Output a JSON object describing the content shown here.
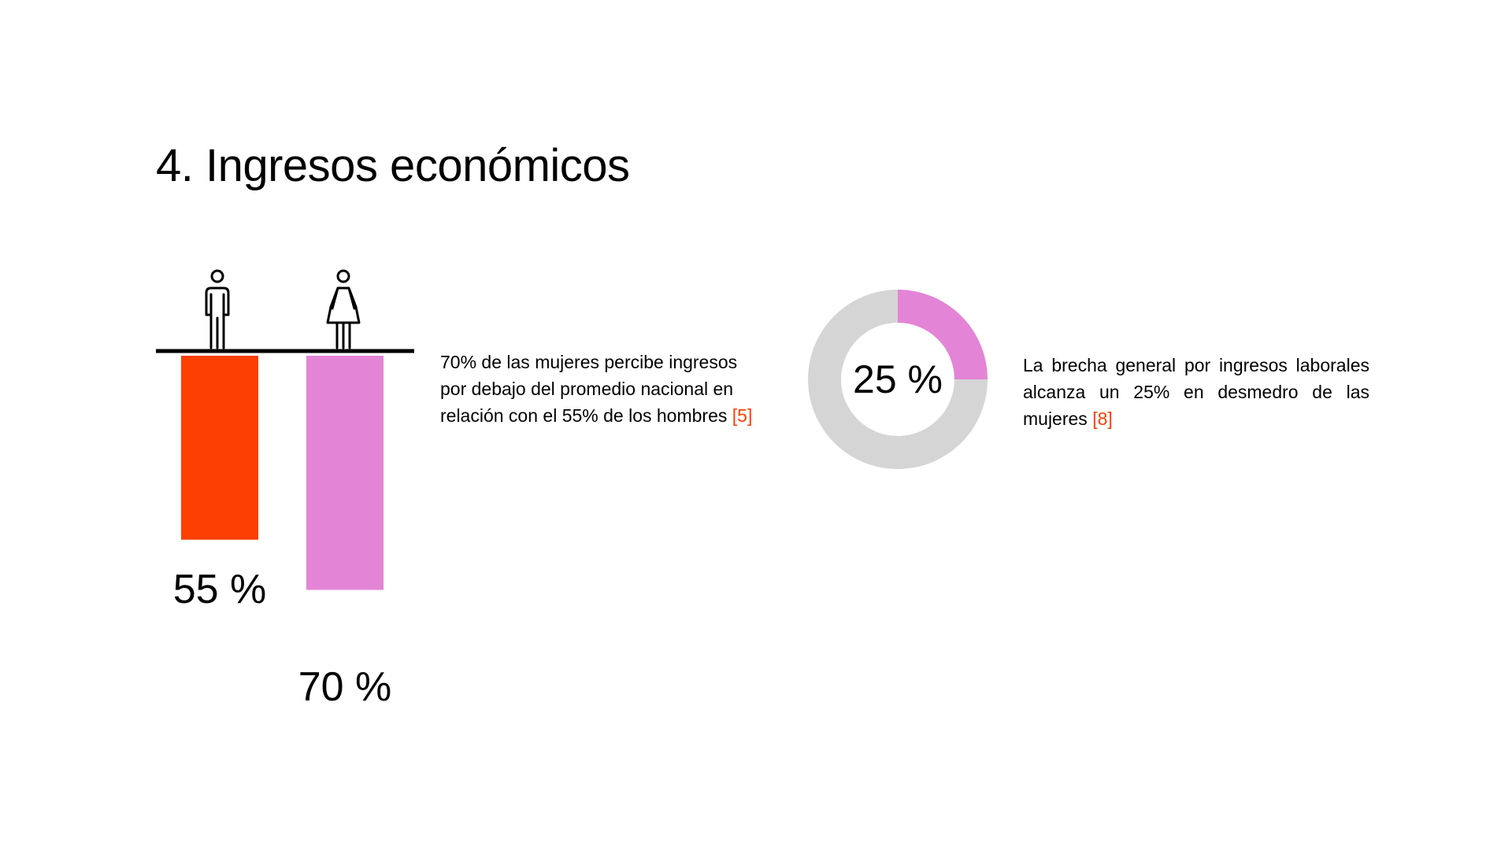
{
  "title": "4. Ingresos económicos",
  "colors": {
    "men": "#fe3f04",
    "women": "#e484d6",
    "track": "#d5d5d5",
    "reference": "#fe3f04"
  },
  "chart_data": [
    {
      "type": "bar",
      "categories": [
        "hombres",
        "mujeres"
      ],
      "category_icons": [
        "man-icon",
        "woman-icon"
      ],
      "values": [
        55,
        70
      ],
      "value_labels": [
        "55 %",
        "70 %"
      ],
      "unit": "%",
      "colors": [
        "#fe3f04",
        "#e484d6"
      ]
    },
    {
      "type": "pie",
      "donut": true,
      "values": [
        25,
        75
      ],
      "colors": [
        "#e484d6",
        "#d5d5d5"
      ],
      "center_label": "25 %"
    }
  ],
  "notes": {
    "left": {
      "text": "70% de las mujeres percibe ingresos por debajo del promedio nacional en relación con el 55% de los hombres",
      "ref": "[5]"
    },
    "right": {
      "text": "La brecha general por ingresos laborales alcanza un 25% en desmedro de las mujeres",
      "ref": "[8]"
    }
  }
}
